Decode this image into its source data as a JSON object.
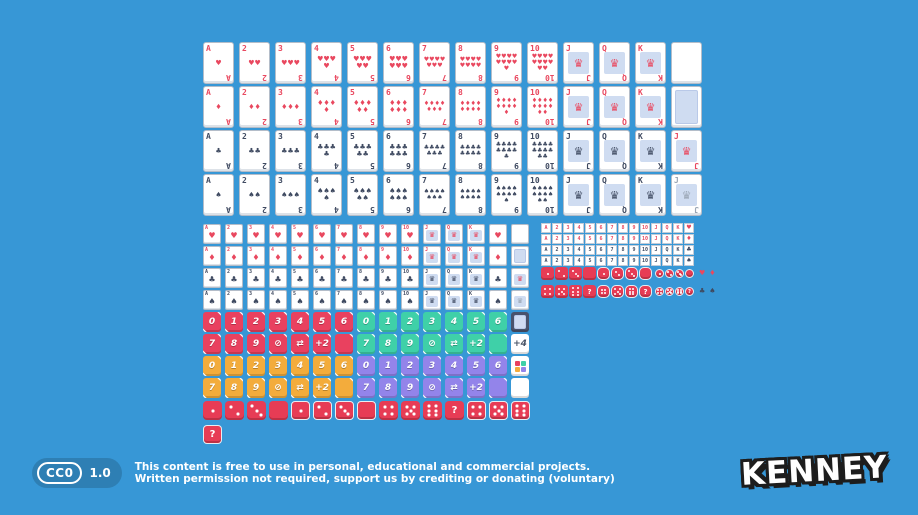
{
  "colors": {
    "background": "#3797d6",
    "card_red": "#e9485f",
    "card_dark": "#3f4a61",
    "card_back_blue": "#cfdcf1",
    "dice_red": "#e73c55",
    "footer_pill": "#2e7fb4"
  },
  "ranks": [
    "A",
    "2",
    "3",
    "4",
    "5",
    "6",
    "7",
    "8",
    "9",
    "10",
    "J",
    "Q",
    "K"
  ],
  "suits": [
    {
      "name": "hearts",
      "glyph": "♥",
      "tone": "red"
    },
    {
      "name": "diamonds",
      "glyph": "♦",
      "tone": "red"
    },
    {
      "name": "clubs",
      "glyph": "♣",
      "tone": "dark"
    },
    {
      "name": "spades",
      "glyph": "♠",
      "tone": "dark"
    }
  ],
  "card_extras_by_row": [
    "blank",
    "back",
    "joker-red",
    "joker-dark"
  ],
  "joker_rank": "J",
  "crown_glyph": "♛",
  "dice": {
    "tiny_rows": [
      {
        "large": [
          "1",
          "2",
          "3",
          "blank"
        ],
        "round": [
          "1",
          "2",
          "3",
          "blank"
        ],
        "small": [
          "1",
          "2",
          "3",
          "blank"
        ],
        "symbols": [
          "♥",
          "♦"
        ],
        "symbol_tone": "red"
      },
      {
        "large": [
          "4",
          "5",
          "6",
          "?"
        ],
        "round": [
          "4",
          "5",
          "6",
          "?"
        ],
        "small": [
          "4",
          "5",
          "6",
          "?"
        ],
        "symbols": [
          "♣",
          "♠"
        ],
        "symbol_tone": "dark"
      }
    ],
    "big_row": [
      {
        "style": "sq",
        "face": "1"
      },
      {
        "style": "sq",
        "face": "2"
      },
      {
        "style": "sq",
        "face": "3"
      },
      {
        "style": "sq",
        "face": "blank"
      },
      {
        "style": "rd",
        "face": "1"
      },
      {
        "style": "rd",
        "face": "2"
      },
      {
        "style": "rd",
        "face": "3"
      },
      {
        "style": "rd",
        "face": "blank"
      },
      {
        "style": "sq",
        "face": "4"
      },
      {
        "style": "sq",
        "face": "5"
      },
      {
        "style": "sq",
        "face": "6"
      },
      {
        "style": "sq",
        "face": "?"
      },
      {
        "style": "rd",
        "face": "4"
      },
      {
        "style": "rd",
        "face": "5"
      },
      {
        "style": "rd",
        "face": "6"
      }
    ],
    "big_extra": {
      "style": "rd",
      "face": "?"
    }
  },
  "color_cards": {
    "palette": [
      {
        "name": "red",
        "hex": "#e9415f"
      },
      {
        "name": "green",
        "hex": "#3fd0a8"
      },
      {
        "name": "yellow",
        "hex": "#f3ac3c"
      },
      {
        "name": "purple",
        "hex": "#9384ea"
      }
    ],
    "row_values": [
      [
        "0",
        "1",
        "2",
        "3",
        "4",
        "5",
        "6"
      ],
      [
        "7",
        "8",
        "9",
        "skip",
        "reverse",
        "+2",
        "blank"
      ]
    ],
    "glyphs": {
      "skip": "⊘",
      "reverse": "⇄",
      "plus_four": "+4"
    },
    "specials": [
      "back",
      "+4",
      "wild",
      "blank"
    ],
    "back_hex": "#49536b"
  },
  "license": {
    "badge": "CC0",
    "version": "1.0",
    "line1": "This content is free to use in personal, educational and commercial projects.",
    "line2": "Written permission not required, support us by crediting or donating (voluntary)"
  },
  "logo_text": "KENNEY"
}
